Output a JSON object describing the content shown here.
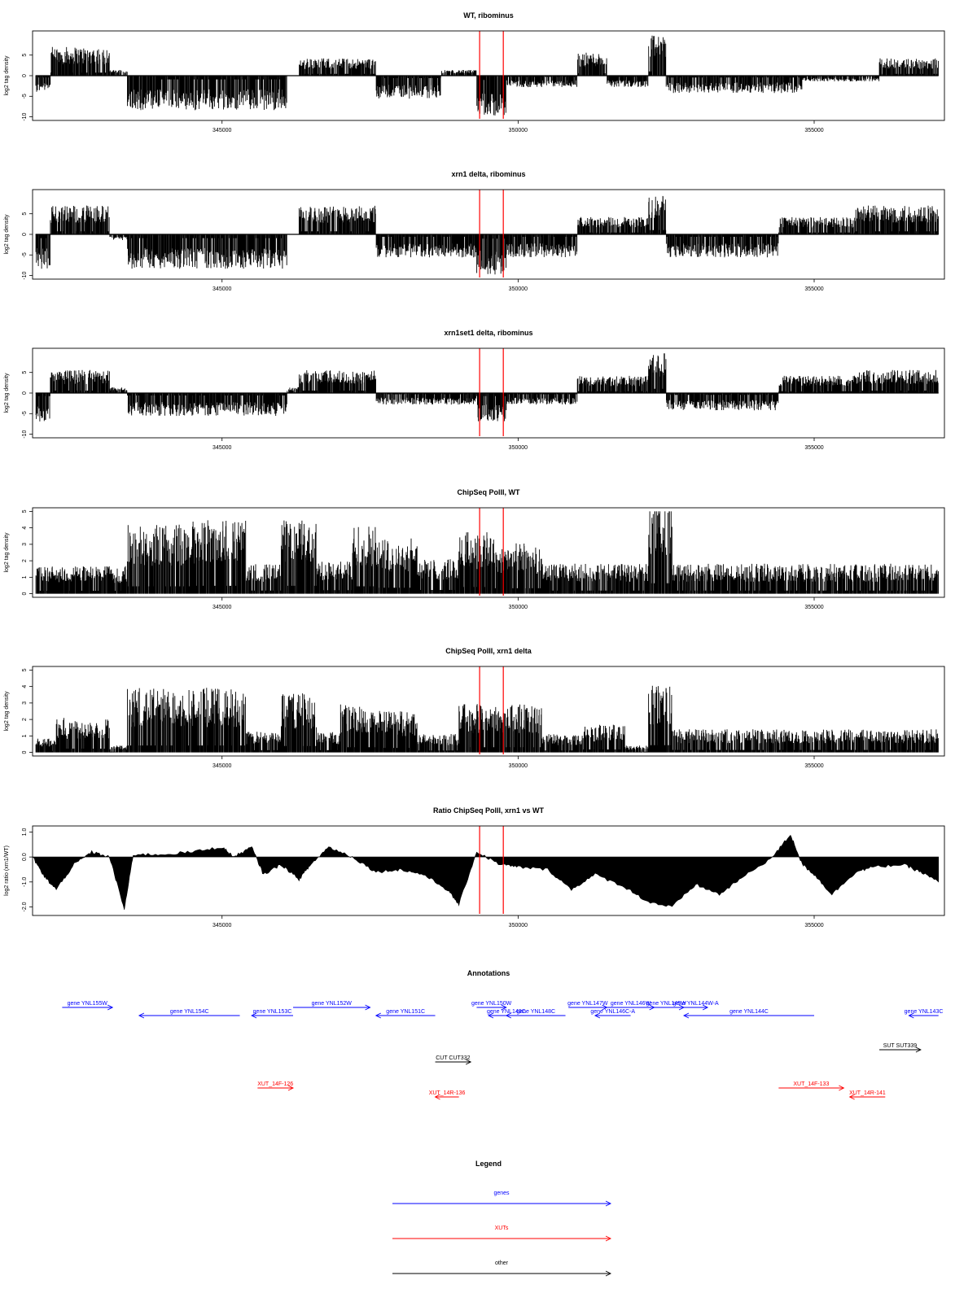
{
  "chart_data": [
    {
      "type": "bar",
      "title": "WT, ribominus",
      "ylabel": "log2 tag density",
      "ylim": [
        -10,
        10
      ],
      "yticks": [
        -10,
        -5,
        0,
        5
      ],
      "xlim": [
        341800,
        357200
      ],
      "xticks": [
        345000,
        350000,
        355000
      ],
      "xtick_labels": [
        "345000",
        "350000",
        "355000"
      ],
      "markers": [
        349350,
        349750
      ],
      "profile": [
        {
          "start": 341850,
          "end": 342100,
          "value": -3
        },
        {
          "start": 342100,
          "end": 343100,
          "value": 5
        },
        {
          "start": 343100,
          "end": 343400,
          "value": 1
        },
        {
          "start": 343400,
          "end": 346100,
          "value": -6
        },
        {
          "start": 346100,
          "end": 346300,
          "value": 0
        },
        {
          "start": 346300,
          "end": 347600,
          "value": 3
        },
        {
          "start": 347600,
          "end": 348700,
          "value": -4
        },
        {
          "start": 348700,
          "end": 349300,
          "value": 1
        },
        {
          "start": 349300,
          "end": 349800,
          "value": -7
        },
        {
          "start": 349800,
          "end": 351000,
          "value": -2
        },
        {
          "start": 351000,
          "end": 351500,
          "value": 4
        },
        {
          "start": 351500,
          "end": 352200,
          "value": -2
        },
        {
          "start": 352200,
          "end": 352500,
          "value": 7
        },
        {
          "start": 352500,
          "end": 354800,
          "value": -3
        },
        {
          "start": 354800,
          "end": 356100,
          "value": -1
        },
        {
          "start": 356100,
          "end": 357100,
          "value": 3
        }
      ]
    },
    {
      "type": "bar",
      "title": "xrn1 delta, ribominus",
      "ylabel": "log2 tag density",
      "ylim": [
        -10,
        10
      ],
      "yticks": [
        -10,
        -5,
        0,
        5
      ],
      "xlim": [
        341800,
        357200
      ],
      "xticks": [
        345000,
        350000,
        355000
      ],
      "xtick_labels": [
        "345000",
        "350000",
        "355000"
      ],
      "markers": [
        349350,
        349750
      ],
      "profile": [
        {
          "start": 341850,
          "end": 342100,
          "value": -6
        },
        {
          "start": 342100,
          "end": 343100,
          "value": 5
        },
        {
          "start": 343100,
          "end": 343400,
          "value": -1
        },
        {
          "start": 343400,
          "end": 346100,
          "value": -6
        },
        {
          "start": 346100,
          "end": 346300,
          "value": 0
        },
        {
          "start": 346300,
          "end": 347600,
          "value": 5
        },
        {
          "start": 347600,
          "end": 349300,
          "value": -4
        },
        {
          "start": 349300,
          "end": 349800,
          "value": -7
        },
        {
          "start": 349800,
          "end": 351000,
          "value": -4
        },
        {
          "start": 351000,
          "end": 352200,
          "value": 3
        },
        {
          "start": 352200,
          "end": 352500,
          "value": 7
        },
        {
          "start": 352500,
          "end": 354400,
          "value": -4
        },
        {
          "start": 354400,
          "end": 355700,
          "value": 3
        },
        {
          "start": 355700,
          "end": 357100,
          "value": 5
        }
      ]
    },
    {
      "type": "bar",
      "title": "xrn1set1 delta, ribominus",
      "ylabel": "log2 tag density",
      "ylim": [
        -10,
        10
      ],
      "yticks": [
        -10,
        -5,
        0,
        5
      ],
      "xlim": [
        341800,
        357200
      ],
      "xticks": [
        345000,
        350000,
        355000
      ],
      "xtick_labels": [
        "345000",
        "350000",
        "355000"
      ],
      "markers": [
        349350,
        349750
      ],
      "profile": [
        {
          "start": 341850,
          "end": 342100,
          "value": -5
        },
        {
          "start": 342100,
          "end": 343100,
          "value": 4
        },
        {
          "start": 343100,
          "end": 343400,
          "value": 1
        },
        {
          "start": 343400,
          "end": 346100,
          "value": -4
        },
        {
          "start": 346100,
          "end": 346300,
          "value": 1
        },
        {
          "start": 346300,
          "end": 347600,
          "value": 4
        },
        {
          "start": 347600,
          "end": 349300,
          "value": -2
        },
        {
          "start": 349300,
          "end": 349800,
          "value": -5
        },
        {
          "start": 349800,
          "end": 351000,
          "value": -2
        },
        {
          "start": 351000,
          "end": 352200,
          "value": 3
        },
        {
          "start": 352200,
          "end": 352500,
          "value": 7
        },
        {
          "start": 352500,
          "end": 354400,
          "value": -3
        },
        {
          "start": 354400,
          "end": 355700,
          "value": 3
        },
        {
          "start": 355700,
          "end": 357100,
          "value": 4
        }
      ]
    },
    {
      "type": "bar",
      "title": "ChipSeq PolII, WT",
      "ylabel": "log2 tag density",
      "ylim": [
        0,
        5
      ],
      "yticks": [
        0,
        1,
        2,
        3,
        4,
        5
      ],
      "xlim": [
        341800,
        357200
      ],
      "xticks": [
        345000,
        350000,
        355000
      ],
      "xtick_labels": [
        "345000",
        "350000",
        "355000"
      ],
      "markers": [
        349350,
        349750
      ],
      "profile": [
        {
          "start": 341850,
          "end": 343400,
          "value": 1.2
        },
        {
          "start": 343400,
          "end": 344500,
          "value": 3.0
        },
        {
          "start": 344500,
          "end": 345400,
          "value": 3.2
        },
        {
          "start": 345400,
          "end": 346000,
          "value": 1.3
        },
        {
          "start": 346000,
          "end": 346600,
          "value": 3.2
        },
        {
          "start": 346600,
          "end": 347200,
          "value": 1.4
        },
        {
          "start": 347200,
          "end": 347600,
          "value": 3.0
        },
        {
          "start": 347600,
          "end": 348300,
          "value": 2.4
        },
        {
          "start": 348300,
          "end": 349000,
          "value": 1.5
        },
        {
          "start": 349000,
          "end": 349600,
          "value": 2.7
        },
        {
          "start": 349600,
          "end": 350400,
          "value": 2.2
        },
        {
          "start": 350400,
          "end": 352200,
          "value": 1.3
        },
        {
          "start": 352200,
          "end": 352600,
          "value": 4.2
        },
        {
          "start": 352600,
          "end": 357100,
          "value": 1.3
        }
      ]
    },
    {
      "type": "bar",
      "title": "ChipSeq PolII, xrn1 delta",
      "ylabel": "log2 tag density",
      "ylim": [
        0,
        5
      ],
      "yticks": [
        0,
        1,
        2,
        3,
        4,
        5
      ],
      "xlim": [
        341800,
        357200
      ],
      "xticks": [
        345000,
        350000,
        355000
      ],
      "xtick_labels": [
        "345000",
        "350000",
        "355000"
      ],
      "markers": [
        349350,
        349750
      ],
      "profile": [
        {
          "start": 341850,
          "end": 342200,
          "value": 0.6
        },
        {
          "start": 342200,
          "end": 343100,
          "value": 1.5
        },
        {
          "start": 343100,
          "end": 343400,
          "value": 0.3
        },
        {
          "start": 343400,
          "end": 345400,
          "value": 2.8
        },
        {
          "start": 345400,
          "end": 346000,
          "value": 0.9
        },
        {
          "start": 346000,
          "end": 346600,
          "value": 2.6
        },
        {
          "start": 346600,
          "end": 347000,
          "value": 0.9
        },
        {
          "start": 347000,
          "end": 347600,
          "value": 2.1
        },
        {
          "start": 347600,
          "end": 348300,
          "value": 1.8
        },
        {
          "start": 348300,
          "end": 349000,
          "value": 0.8
        },
        {
          "start": 349000,
          "end": 350400,
          "value": 2.1
        },
        {
          "start": 350400,
          "end": 351100,
          "value": 0.8
        },
        {
          "start": 351100,
          "end": 351800,
          "value": 1.2
        },
        {
          "start": 351800,
          "end": 352200,
          "value": 0.3
        },
        {
          "start": 352200,
          "end": 352600,
          "value": 2.9
        },
        {
          "start": 352600,
          "end": 357100,
          "value": 1.0
        }
      ]
    },
    {
      "type": "area",
      "title": "Ratio ChipSeq PolII, xrn1 vs WT",
      "ylabel": "log2 ratio (xrn1/WT)",
      "ylim": [
        -2.2,
        1.1
      ],
      "yticks": [
        -2.0,
        -1.0,
        0.0,
        1.0
      ],
      "ytick_labels": [
        "-2.0",
        "-1.0",
        "0.0",
        "1.0"
      ],
      "xlim": [
        341800,
        357200
      ],
      "xticks": [
        345000,
        350000,
        355000
      ],
      "xtick_labels": [
        "345000",
        "350000",
        "355000"
      ],
      "markers": [
        349350,
        349750
      ],
      "x": [
        341800,
        342000,
        342200,
        342500,
        342800,
        343100,
        343350,
        343500,
        344000,
        344500,
        345000,
        345200,
        345500,
        345700,
        346000,
        346300,
        346500,
        346800,
        347200,
        347600,
        348000,
        348400,
        348800,
        349000,
        349300,
        349700,
        350000,
        350500,
        350900,
        351300,
        351800,
        352200,
        352600,
        353000,
        353400,
        353800,
        354300,
        354600,
        354800,
        355000,
        355300,
        355700,
        356000,
        356500,
        356800,
        357100
      ],
      "y": [
        0.0,
        -0.8,
        -1.3,
        -0.3,
        0.2,
        0.0,
        -2.1,
        0.1,
        0.1,
        0.2,
        0.4,
        0.0,
        0.4,
        -0.7,
        -0.3,
        -0.9,
        -0.3,
        0.4,
        0.0,
        -0.6,
        -0.5,
        -0.7,
        -1.3,
        -1.9,
        0.2,
        -0.3,
        -0.4,
        -0.5,
        -1.3,
        -0.7,
        -1.2,
        -1.8,
        -2.0,
        -1.1,
        -1.5,
        -0.8,
        0.0,
        0.9,
        -0.3,
        -0.7,
        -1.5,
        -0.6,
        -0.4,
        -0.3,
        -0.6,
        -1.0
      ]
    }
  ],
  "annotations": {
    "title": "Annotations",
    "xlim": [
      341800,
      357200
    ],
    "features": [
      {
        "label": "gene YNL155W",
        "start": 342300,
        "end": 343150,
        "strand": "+",
        "row": 0,
        "color": "#0000ff"
      },
      {
        "label": "gene YNL154C",
        "start": 343600,
        "end": 345300,
        "strand": "-",
        "row": 1,
        "color": "#0000ff"
      },
      {
        "label": "gene YNL153C",
        "start": 345500,
        "end": 346200,
        "strand": "-",
        "row": 1,
        "color": "#0000ff"
      },
      {
        "label": "gene YNL152W",
        "start": 346200,
        "end": 347500,
        "strand": "+",
        "row": 0,
        "color": "#0000ff"
      },
      {
        "label": "gene YNL151C",
        "start": 347600,
        "end": 348600,
        "strand": "-",
        "row": 1,
        "color": "#0000ff"
      },
      {
        "label": "gene YNL150W",
        "start": 349300,
        "end": 349800,
        "strand": "+",
        "row": 0,
        "color": "#0000ff"
      },
      {
        "label": "gene YNL149C",
        "start": 349500,
        "end": 350100,
        "strand": "-",
        "row": 1,
        "color": "#0000ff"
      },
      {
        "label": "gene YNL148C",
        "start": 349800,
        "end": 350800,
        "strand": "-",
        "row": 1,
        "color": "#0000ff"
      },
      {
        "label": "gene YNL147W",
        "start": 350850,
        "end": 351500,
        "strand": "+",
        "row": 0,
        "color": "#0000ff"
      },
      {
        "label": "gene YNL146C-A",
        "start": 351300,
        "end": 351900,
        "strand": "-",
        "row": 1,
        "color": "#0000ff"
      },
      {
        "label": "gene YNL146W",
        "start": 351500,
        "end": 352300,
        "strand": "+",
        "row": 0,
        "color": "#0000ff"
      },
      {
        "label": "gene YNL145W",
        "start": 352200,
        "end": 352800,
        "strand": "+",
        "row": 0,
        "color": "#0000ff"
      },
      {
        "label": "gene YNL144W-A",
        "start": 352800,
        "end": 353200,
        "strand": "+",
        "row": 0,
        "color": "#0000ff"
      },
      {
        "label": "gene YNL144C",
        "start": 352800,
        "end": 355000,
        "strand": "-",
        "row": 1,
        "color": "#0000ff"
      },
      {
        "label": "gene YNL143C",
        "start": 356600,
        "end": 357100,
        "strand": "-",
        "row": 1,
        "color": "#0000ff"
      },
      {
        "label": "SUT SUT339",
        "start": 356100,
        "end": 356800,
        "strand": "+",
        "row": 2,
        "color": "#000000"
      },
      {
        "label": "CUT CUT332",
        "start": 348600,
        "end": 349200,
        "strand": "+",
        "row": 3,
        "color": "#000000"
      },
      {
        "label": "XUT_14F-126",
        "start": 345600,
        "end": 346200,
        "strand": "+",
        "row": 4,
        "color": "#ff0000"
      },
      {
        "label": "XUT_14R-136",
        "start": 348600,
        "end": 349000,
        "strand": "-",
        "row": 5,
        "color": "#ff0000"
      },
      {
        "label": "XUT_14F-133",
        "start": 354400,
        "end": 355500,
        "strand": "+",
        "row": 4,
        "color": "#ff0000"
      },
      {
        "label": "XUT_14R-141",
        "start": 355600,
        "end": 356200,
        "strand": "-",
        "row": 5,
        "color": "#ff0000"
      }
    ]
  },
  "legend": {
    "title": "Legend",
    "items": [
      {
        "label": "genes",
        "color": "#0000ff"
      },
      {
        "label": "XUTs",
        "color": "#ff0000"
      },
      {
        "label": "other",
        "color": "#000000"
      }
    ]
  },
  "colors": {
    "marker": "#ff0000",
    "signal": "#000000",
    "axis": "#000000"
  }
}
